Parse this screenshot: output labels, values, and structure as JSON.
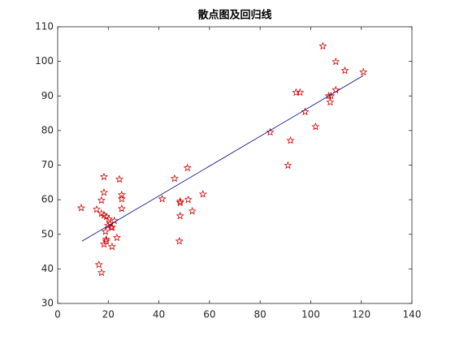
{
  "chart_data": {
    "type": "scatter",
    "title": "散点图及回归线",
    "xlim": [
      0,
      140
    ],
    "xticks": [
      0,
      20,
      40,
      60,
      80,
      100,
      120,
      140
    ],
    "ylim": [
      30,
      110
    ],
    "yticks": [
      30,
      40,
      50,
      60,
      70,
      80,
      90,
      100,
      110
    ],
    "series": [
      {
        "type": "scatter",
        "color": "#d40000",
        "x": [
          9.3,
          15.4,
          16.3,
          17.3,
          17.3,
          17.3,
          18.3,
          18.3,
          18.3,
          18.3,
          18.9,
          19.2,
          19.2,
          19.2,
          19.9,
          20.2,
          20.8,
          21.2,
          21.5,
          21.5,
          22.4,
          23.4,
          24.4,
          25.3,
          25.3,
          25.3,
          41.3,
          46.2,
          48.4,
          48.4,
          48.4,
          48.1,
          51.3,
          51.6,
          53.2,
          57.4,
          84.0,
          91.0,
          92.0,
          94.2,
          95.8,
          97.8,
          101.9,
          104.8,
          107.1,
          107.7,
          108.0,
          109.9,
          109.9,
          113.5,
          120.8
        ],
        "values": [
          57.6,
          57.2,
          41.2,
          38.9,
          59.8,
          56.0,
          62.1,
          55.5,
          66.6,
          47.1,
          50.8,
          48.5,
          48.0,
          55.1,
          52.5,
          54.4,
          53.0,
          52.0,
          46.4,
          52.0,
          53.9,
          49.0,
          65.9,
          61.4,
          60.2,
          57.4,
          60.2,
          66.1,
          59.5,
          59.1,
          55.3,
          48.0,
          69.2,
          60.0,
          56.7,
          61.6,
          79.5,
          69.9,
          77.1,
          91.0,
          91.0,
          85.4,
          81.1,
          104.4,
          90.0,
          88.2,
          90.0,
          91.7,
          99.9,
          97.3,
          96.9
        ]
      },
      {
        "type": "line",
        "color": "#00008b",
        "x": [
          9.6,
          120.8
        ],
        "values": [
          48.0,
          95.9
        ]
      }
    ]
  }
}
